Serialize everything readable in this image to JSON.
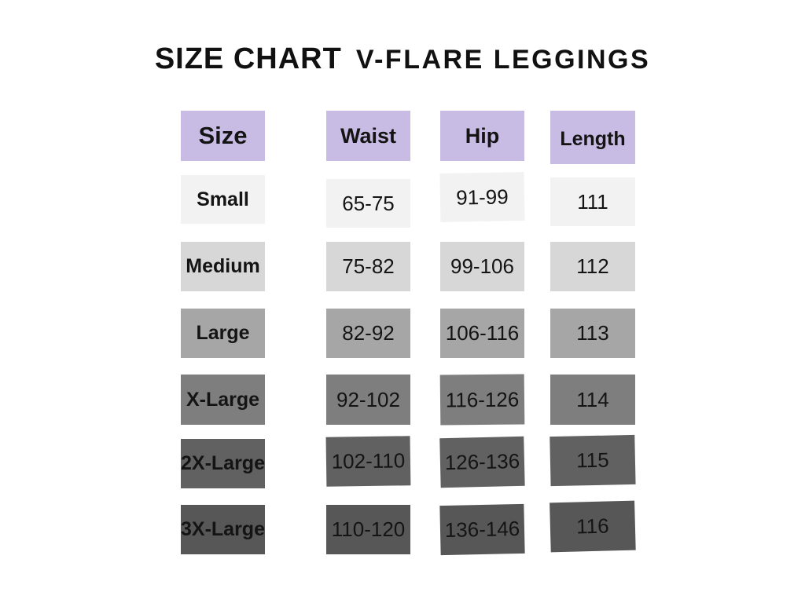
{
  "title": {
    "part1": "SIZE CHART",
    "part2": "V-FLARE LEGGINGS"
  },
  "chart_data": {
    "type": "table",
    "title": "SIZE CHART V-FLARE LEGGINGS",
    "columns": [
      "Size",
      "Waist",
      "Hip",
      "Length"
    ],
    "rows": [
      [
        "Small",
        "65-75",
        "91-99",
        "111"
      ],
      [
        "Medium",
        "75-82",
        "99-106",
        "112"
      ],
      [
        "Large",
        "82-92",
        "106-116",
        "113"
      ],
      [
        "X-Large",
        "92-102",
        "116-126",
        "114"
      ],
      [
        "2X-Large",
        "102-110",
        "126-136",
        "115"
      ],
      [
        "3X-Large",
        "110-120",
        "136-146",
        "116"
      ]
    ]
  },
  "styles": {
    "background": "#ffffff",
    "text": "#141414",
    "header_bg": "#c9bce4",
    "row_bgs": [
      "#f2f2f2",
      "#d7d7d7",
      "#a6a6a6",
      "#7e7e7e",
      "#616161",
      "#575757"
    ]
  }
}
